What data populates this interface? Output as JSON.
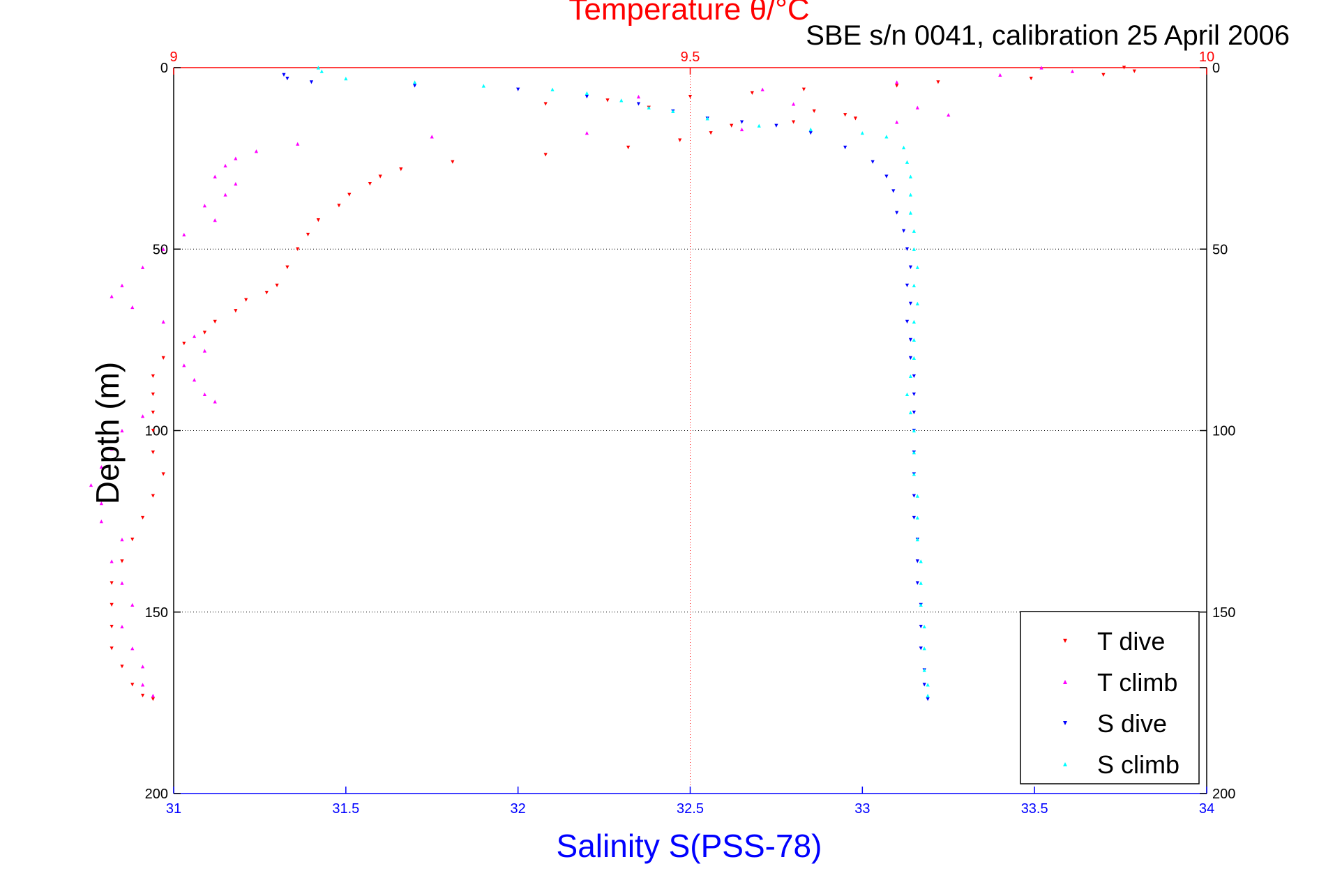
{
  "chart_data": {
    "type": "scatter",
    "title": "Temperature θ/°C",
    "subtitle": "SBE s/n 0041, calibration 25 April 2006",
    "xlabel": "Salinity S(PSS-78)",
    "ylabel": "Depth (m)",
    "x_salinity": {
      "lim": [
        31,
        34
      ],
      "ticks": [
        "31",
        "31.5",
        "32",
        "32.5",
        "33",
        "33.5",
        "34"
      ]
    },
    "x_temperature": {
      "lim": [
        9,
        10
      ],
      "ticks": [
        "9",
        "9.5",
        "10"
      ]
    },
    "depth": {
      "lim": [
        0,
        200
      ],
      "reversed": true,
      "ticks": [
        "0",
        "50",
        "100",
        "150",
        "200"
      ]
    },
    "grid": "dotted",
    "legend_position": "bottom-right",
    "colors": {
      "t_dive": "#ff0000",
      "t_climb": "#ff00ff",
      "s_dive": "#0000ff",
      "s_climb": "#00ffff",
      "salinity_axis": "#0000ff",
      "temperature_axis": "#ff0000"
    },
    "series": [
      {
        "name": "T dive",
        "axis": "temperature",
        "marker": "down-triangle",
        "points": [
          [
            9.92,
            0
          ],
          [
            9.93,
            1
          ],
          [
            9.9,
            2
          ],
          [
            9.83,
            3
          ],
          [
            9.74,
            4
          ],
          [
            9.7,
            5
          ],
          [
            9.61,
            6
          ],
          [
            9.56,
            7
          ],
          [
            9.5,
            8
          ],
          [
            9.42,
            9
          ],
          [
            9.36,
            10
          ],
          [
            9.46,
            11
          ],
          [
            9.62,
            12
          ],
          [
            9.65,
            13
          ],
          [
            9.66,
            14
          ],
          [
            9.6,
            15
          ],
          [
            9.54,
            16
          ],
          [
            9.52,
            18
          ],
          [
            9.49,
            20
          ],
          [
            9.44,
            22
          ],
          [
            9.36,
            24
          ],
          [
            9.27,
            26
          ],
          [
            9.22,
            28
          ],
          [
            9.2,
            30
          ],
          [
            9.19,
            32
          ],
          [
            9.17,
            35
          ],
          [
            9.16,
            38
          ],
          [
            9.14,
            42
          ],
          [
            9.13,
            46
          ],
          [
            9.12,
            50
          ],
          [
            9.11,
            55
          ],
          [
            9.1,
            60
          ],
          [
            9.09,
            62
          ],
          [
            9.07,
            64
          ],
          [
            9.06,
            67
          ],
          [
            9.04,
            70
          ],
          [
            9.03,
            73
          ],
          [
            9.01,
            76
          ],
          [
            8.99,
            80
          ],
          [
            8.98,
            85
          ],
          [
            8.98,
            90
          ],
          [
            8.98,
            95
          ],
          [
            8.98,
            100
          ],
          [
            8.98,
            106
          ],
          [
            8.99,
            112
          ],
          [
            8.98,
            118
          ],
          [
            8.97,
            124
          ],
          [
            8.96,
            130
          ],
          [
            8.95,
            136
          ],
          [
            8.94,
            142
          ],
          [
            8.94,
            148
          ],
          [
            8.94,
            154
          ],
          [
            8.94,
            160
          ],
          [
            8.95,
            165
          ],
          [
            8.96,
            170
          ],
          [
            8.97,
            173
          ],
          [
            8.98,
            174
          ]
        ]
      },
      {
        "name": "T climb",
        "axis": "temperature",
        "marker": "up-triangle",
        "points": [
          [
            9.84,
            0
          ],
          [
            9.87,
            1
          ],
          [
            9.8,
            2
          ],
          [
            9.7,
            4
          ],
          [
            9.57,
            6
          ],
          [
            9.45,
            8
          ],
          [
            9.6,
            10
          ],
          [
            9.72,
            11
          ],
          [
            9.75,
            13
          ],
          [
            9.7,
            15
          ],
          [
            9.55,
            17
          ],
          [
            9.4,
            18
          ],
          [
            9.25,
            19
          ],
          [
            9.12,
            21
          ],
          [
            9.08,
            23
          ],
          [
            9.06,
            25
          ],
          [
            9.05,
            27
          ],
          [
            9.04,
            30
          ],
          [
            9.06,
            32
          ],
          [
            9.05,
            35
          ],
          [
            9.03,
            38
          ],
          [
            9.04,
            42
          ],
          [
            9.01,
            46
          ],
          [
            8.99,
            50
          ],
          [
            8.97,
            55
          ],
          [
            8.95,
            60
          ],
          [
            8.94,
            63
          ],
          [
            8.96,
            66
          ],
          [
            8.99,
            70
          ],
          [
            9.02,
            74
          ],
          [
            9.03,
            78
          ],
          [
            9.01,
            82
          ],
          [
            9.02,
            86
          ],
          [
            9.03,
            90
          ],
          [
            9.04,
            92
          ],
          [
            8.97,
            96
          ],
          [
            8.95,
            100
          ],
          [
            8.94,
            105
          ],
          [
            8.93,
            110
          ],
          [
            8.92,
            115
          ],
          [
            8.93,
            120
          ],
          [
            8.93,
            125
          ],
          [
            8.95,
            130
          ],
          [
            8.94,
            136
          ],
          [
            8.95,
            142
          ],
          [
            8.96,
            148
          ],
          [
            8.95,
            154
          ],
          [
            8.96,
            160
          ],
          [
            8.97,
            165
          ],
          [
            8.97,
            170
          ],
          [
            8.98,
            173
          ]
        ]
      },
      {
        "name": "S dive",
        "axis": "salinity",
        "marker": "down-triangle",
        "points": [
          [
            31.32,
            2
          ],
          [
            31.33,
            3
          ],
          [
            31.4,
            4
          ],
          [
            31.7,
            5
          ],
          [
            32.0,
            6
          ],
          [
            32.2,
            8
          ],
          [
            32.35,
            10
          ],
          [
            32.45,
            12
          ],
          [
            32.55,
            14
          ],
          [
            32.65,
            15
          ],
          [
            32.75,
            16
          ],
          [
            32.85,
            18
          ],
          [
            32.95,
            22
          ],
          [
            33.03,
            26
          ],
          [
            33.07,
            30
          ],
          [
            33.09,
            34
          ],
          [
            33.1,
            40
          ],
          [
            33.12,
            45
          ],
          [
            33.13,
            50
          ],
          [
            33.14,
            55
          ],
          [
            33.13,
            60
          ],
          [
            33.14,
            65
          ],
          [
            33.13,
            70
          ],
          [
            33.14,
            75
          ],
          [
            33.14,
            80
          ],
          [
            33.15,
            85
          ],
          [
            33.15,
            90
          ],
          [
            33.15,
            95
          ],
          [
            33.15,
            100
          ],
          [
            33.15,
            106
          ],
          [
            33.15,
            112
          ],
          [
            33.15,
            118
          ],
          [
            33.15,
            124
          ],
          [
            33.16,
            130
          ],
          [
            33.16,
            136
          ],
          [
            33.16,
            142
          ],
          [
            33.17,
            148
          ],
          [
            33.17,
            154
          ],
          [
            33.17,
            160
          ],
          [
            33.18,
            166
          ],
          [
            33.18,
            170
          ],
          [
            33.19,
            174
          ]
        ]
      },
      {
        "name": "S climb",
        "axis": "salinity",
        "marker": "up-triangle",
        "points": [
          [
            31.42,
            0
          ],
          [
            31.43,
            1
          ],
          [
            31.5,
            3
          ],
          [
            31.7,
            4
          ],
          [
            31.9,
            5
          ],
          [
            32.1,
            6
          ],
          [
            32.2,
            7
          ],
          [
            32.3,
            9
          ],
          [
            32.38,
            11
          ],
          [
            32.45,
            12
          ],
          [
            32.55,
            14
          ],
          [
            32.7,
            16
          ],
          [
            32.85,
            17
          ],
          [
            33.0,
            18
          ],
          [
            33.07,
            19
          ],
          [
            33.12,
            22
          ],
          [
            33.13,
            26
          ],
          [
            33.14,
            30
          ],
          [
            33.14,
            35
          ],
          [
            33.14,
            40
          ],
          [
            33.15,
            45
          ],
          [
            33.15,
            50
          ],
          [
            33.16,
            55
          ],
          [
            33.15,
            60
          ],
          [
            33.16,
            65
          ],
          [
            33.15,
            70
          ],
          [
            33.15,
            75
          ],
          [
            33.15,
            80
          ],
          [
            33.14,
            85
          ],
          [
            33.13,
            90
          ],
          [
            33.14,
            95
          ],
          [
            33.15,
            100
          ],
          [
            33.15,
            106
          ],
          [
            33.15,
            112
          ],
          [
            33.16,
            118
          ],
          [
            33.16,
            124
          ],
          [
            33.16,
            130
          ],
          [
            33.17,
            136
          ],
          [
            33.17,
            142
          ],
          [
            33.17,
            148
          ],
          [
            33.18,
            154
          ],
          [
            33.18,
            160
          ],
          [
            33.18,
            166
          ],
          [
            33.19,
            170
          ],
          [
            33.19,
            173
          ]
        ]
      }
    ]
  }
}
